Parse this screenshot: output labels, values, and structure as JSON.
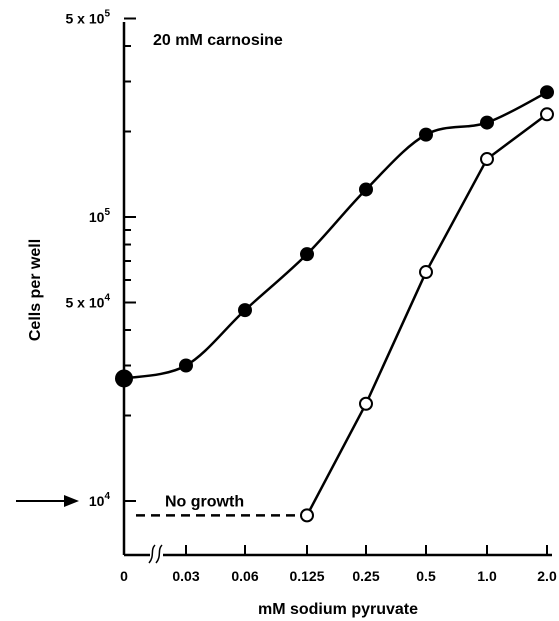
{
  "chart_data": {
    "type": "line",
    "title": "",
    "annotation": "20 mM carnosine",
    "xlabel": "mM sodium pyruvate",
    "ylabel": "Cells per well",
    "y_scale": "log",
    "ylim": [
      8000,
      520000
    ],
    "categories": [
      "0",
      "0.03",
      "0.06",
      "0.125",
      "0.25",
      "0.5",
      "1.0",
      "2.0"
    ],
    "x_axis_break": "between 0 and 0.03",
    "y_ticks": [
      {
        "value": 500000,
        "label_main": "5 x 10",
        "label_exp": "5"
      },
      {
        "value": 100000,
        "label_main": "10",
        "label_exp": "5"
      },
      {
        "value": 50000,
        "label_main": "5 x 10",
        "label_exp": "4"
      },
      {
        "value": 10000,
        "label_main": "10",
        "label_exp": "4"
      }
    ],
    "y_minor_ticks": [
      400000,
      300000,
      200000,
      90000,
      80000,
      70000,
      60000,
      40000,
      30000,
      20000
    ],
    "series": [
      {
        "marker": "filled",
        "values": [
          27000,
          30000,
          47000,
          74000,
          125000,
          195000,
          215000,
          275000
        ]
      },
      {
        "marker": "open",
        "values": [
          null,
          null,
          null,
          8900,
          22000,
          64000,
          160000,
          230000
        ]
      }
    ],
    "no_growth": {
      "label": "No growth",
      "value": 8900,
      "from_category": "0",
      "to_category": "0.125"
    }
  }
}
